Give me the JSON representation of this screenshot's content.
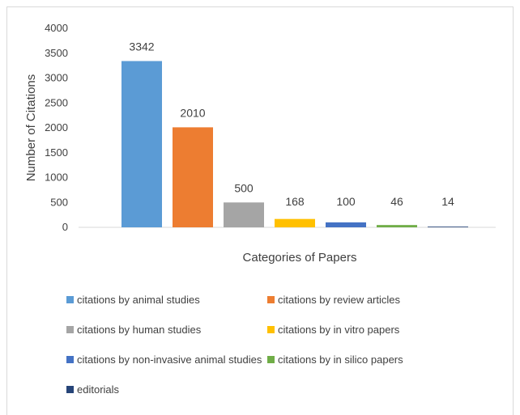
{
  "chart_data": {
    "type": "bar",
    "title": "",
    "xlabel": "Categories of Papers",
    "ylabel": "Number of Citations",
    "ylim": [
      0,
      4000
    ],
    "yticks": [
      0,
      500,
      1000,
      1500,
      2000,
      2500,
      3000,
      3500,
      4000
    ],
    "grid": false,
    "legend_position": "bottom",
    "series": [
      {
        "name": "citations by animal studies",
        "value": 3342,
        "color": "#5b9bd5"
      },
      {
        "name": "citations by review articles",
        "value": 2010,
        "color": "#ed7d31"
      },
      {
        "name": "citations by human studies",
        "value": 500,
        "color": "#a5a5a5"
      },
      {
        "name": "citations by in vitro papers",
        "value": 168,
        "color": "#ffc000"
      },
      {
        "name": "citations by non-invasive animal studies",
        "value": 100,
        "color": "#4472c4"
      },
      {
        "name": "citations by in silico papers",
        "value": 46,
        "color": "#70ad47"
      },
      {
        "name": "editorials",
        "value": 14,
        "color": "#264478"
      }
    ]
  }
}
